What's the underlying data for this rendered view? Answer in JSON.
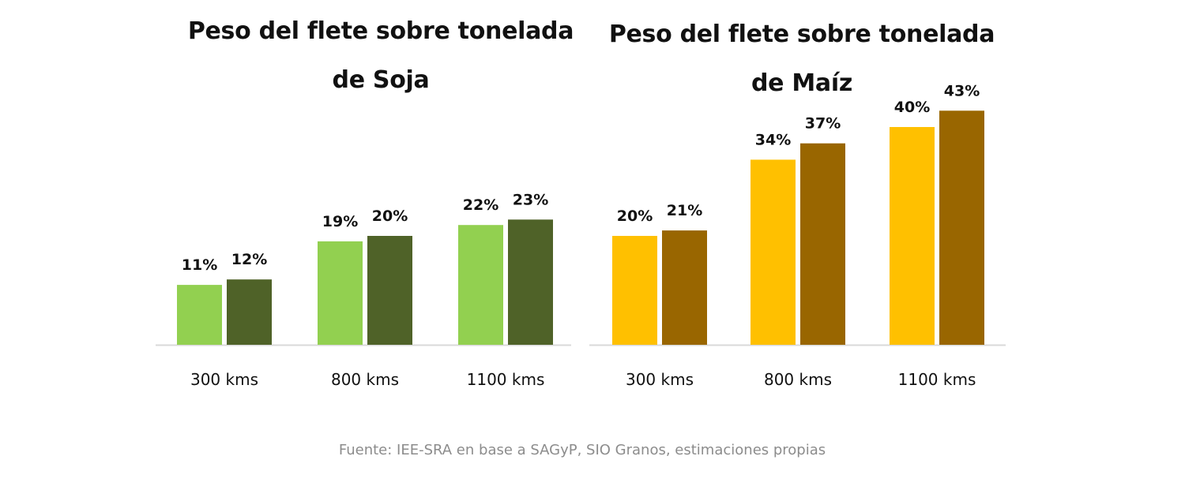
{
  "charts": [
    {
      "title_line1": "Peso del flete sobre tonelada",
      "title_line2": "de Soja"
    },
    {
      "title_line1": "Peso del flete sobre tonelada",
      "title_line2": "de Maíz"
    }
  ],
  "source": "Fuente: IEE-SRA en base a SAGyP, SIO Granos, estimaciones propias",
  "chart_data": [
    {
      "type": "bar",
      "title": "Peso del flete sobre tonelada de Soja",
      "categories": [
        "300 kms",
        "800 kms",
        "1100 kms"
      ],
      "series": [
        {
          "name": "",
          "color": "#92d050",
          "values": [
            11,
            19,
            22
          ],
          "labels": [
            "11%",
            "19%",
            "22%"
          ]
        },
        {
          "name": "",
          "color": "#4f6228",
          "values": [
            12,
            20,
            23
          ],
          "labels": [
            "12%",
            "20%",
            "23%"
          ]
        }
      ],
      "ylim": [
        0,
        50
      ],
      "grid": false,
      "xlabel": "",
      "ylabel": ""
    },
    {
      "type": "bar",
      "title": "Peso del flete sobre tonelada de Maíz",
      "categories": [
        "300 kms",
        "800 kms",
        "1100 kms"
      ],
      "series": [
        {
          "name": "",
          "color": "#ffc000",
          "values": [
            20,
            34,
            40
          ],
          "labels": [
            "20%",
            "34%",
            "40%"
          ]
        },
        {
          "name": "",
          "color": "#996600",
          "values": [
            21,
            37,
            43
          ],
          "labels": [
            "21%",
            "37%",
            "43%"
          ]
        }
      ],
      "ylim": [
        0,
        50
      ],
      "grid": false,
      "xlabel": "",
      "ylabel": ""
    }
  ]
}
